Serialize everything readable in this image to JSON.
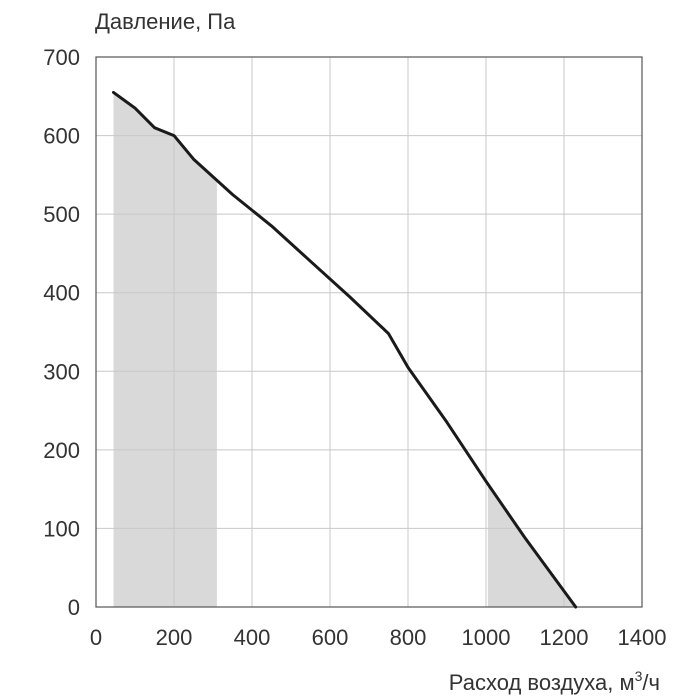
{
  "chart_data": {
    "type": "line",
    "ylabel": "Давление, Па",
    "xlabel_text": "Расход воздуха, м",
    "xlabel_sup": "3",
    "xlabel_suffix": "/ч",
    "xlim": [
      0,
      1400
    ],
    "ylim": [
      0,
      700
    ],
    "x_ticks": [
      0,
      200,
      400,
      600,
      800,
      1000,
      1200,
      1400
    ],
    "y_ticks": [
      0,
      100,
      200,
      300,
      400,
      500,
      600,
      700
    ],
    "x_tick_labels": [
      "0",
      "200",
      "400",
      "600",
      "800",
      "1000",
      "1200",
      "1400"
    ],
    "y_tick_labels": [
      "0",
      "100",
      "200",
      "300",
      "400",
      "500",
      "600",
      "700"
    ],
    "grid": true,
    "curve_color": "#1a1a1a",
    "region_color": "#d9d9d9",
    "series": [
      {
        "x": [
          45,
          100,
          150,
          200,
          250,
          350,
          450,
          550,
          650,
          750,
          800,
          900,
          1000,
          1100,
          1230
        ],
        "y": [
          655,
          635,
          610,
          600,
          570,
          525,
          485,
          440,
          395,
          348,
          305,
          235,
          160,
          88,
          0
        ]
      }
    ],
    "shaded_regions": [
      {
        "x0": 45,
        "x1": 310
      },
      {
        "x0": 1005,
        "x1": 1230
      }
    ]
  }
}
